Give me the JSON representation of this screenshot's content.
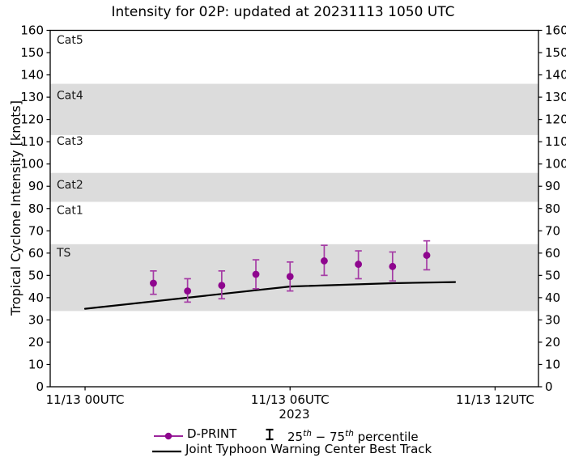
{
  "title": "Intensity for 02P: updated at 20231113 1050 UTC",
  "y_axis": {
    "label": "Tropical Cyclone Intensity [knots]",
    "ticks": [
      0,
      10,
      20,
      30,
      40,
      50,
      60,
      70,
      80,
      90,
      100,
      110,
      120,
      130,
      140,
      150,
      160
    ]
  },
  "x_axis": {
    "year_label": "2023",
    "ticks": [
      {
        "label": "11/13 00UTC",
        "t": 0
      },
      {
        "label": "11/13 06UTC",
        "t": 6
      },
      {
        "label": "11/13 12UTC",
        "t": 12
      }
    ]
  },
  "legend": {
    "dprint_label": "D-PRINT",
    "percentile": {
      "p1": "25",
      "sup1": "th",
      "p2": " − 75",
      "sup2": "th",
      "p3": " percentile"
    },
    "best_track_label": "Joint Typhoon Warning Center Best Track"
  },
  "colors": {
    "dprint": "#8e068e",
    "errorbar": "#a53ca5",
    "best_track": "#000000",
    "band_gray": "#dcdcdc",
    "frame": "#000000"
  },
  "chart_data": {
    "type": "line",
    "title": "Intensity for 02P: updated at 20231113 1050 UTC",
    "xlabel": "2023",
    "ylabel": "Tropical Cyclone Intensity [knots]",
    "x_unit": "hours since 2023-11-13 00:00 UTC",
    "x_domain": [
      -1.02,
      13.27
    ],
    "y_domain": [
      0,
      160
    ],
    "grid": false,
    "legend_position": "bottom-center",
    "bands": [
      {
        "label": "TS",
        "lo": 34,
        "hi": 64,
        "shaded": true,
        "label_y": 60
      },
      {
        "label": "Cat1",
        "lo": 64,
        "hi": 83,
        "shaded": false,
        "label_y": 79
      },
      {
        "label": "Cat2",
        "lo": 83,
        "hi": 96,
        "shaded": true,
        "label_y": 90.5
      },
      {
        "label": "Cat3",
        "lo": 96,
        "hi": 113,
        "shaded": false,
        "label_y": 110
      },
      {
        "label": "Cat4",
        "lo": 113,
        "hi": 136,
        "shaded": true,
        "label_y": 130.5
      },
      {
        "label": "Cat5",
        "lo": 136,
        "hi": 160,
        "shaded": false,
        "label_y": 155.5
      }
    ],
    "series": [
      {
        "name": "D-PRINT",
        "type": "scatter_errorbar",
        "x": [
          2,
          3,
          4,
          5,
          6,
          7,
          8,
          9,
          10
        ],
        "y": [
          46.5,
          43,
          45.5,
          50.5,
          49.5,
          56.5,
          55,
          54,
          59
        ],
        "y25": [
          41.5,
          38,
          39.5,
          44,
          43,
          50,
          48.5,
          47.5,
          52.5
        ],
        "y75": [
          52,
          48.5,
          52,
          57,
          56,
          63.5,
          61,
          60.5,
          65.5
        ]
      },
      {
        "name": "Joint Typhoon Warning Center Best Track",
        "type": "line",
        "x": [
          0,
          6,
          9,
          10.83
        ],
        "y": [
          35,
          45,
          46.5,
          47
        ]
      }
    ]
  }
}
